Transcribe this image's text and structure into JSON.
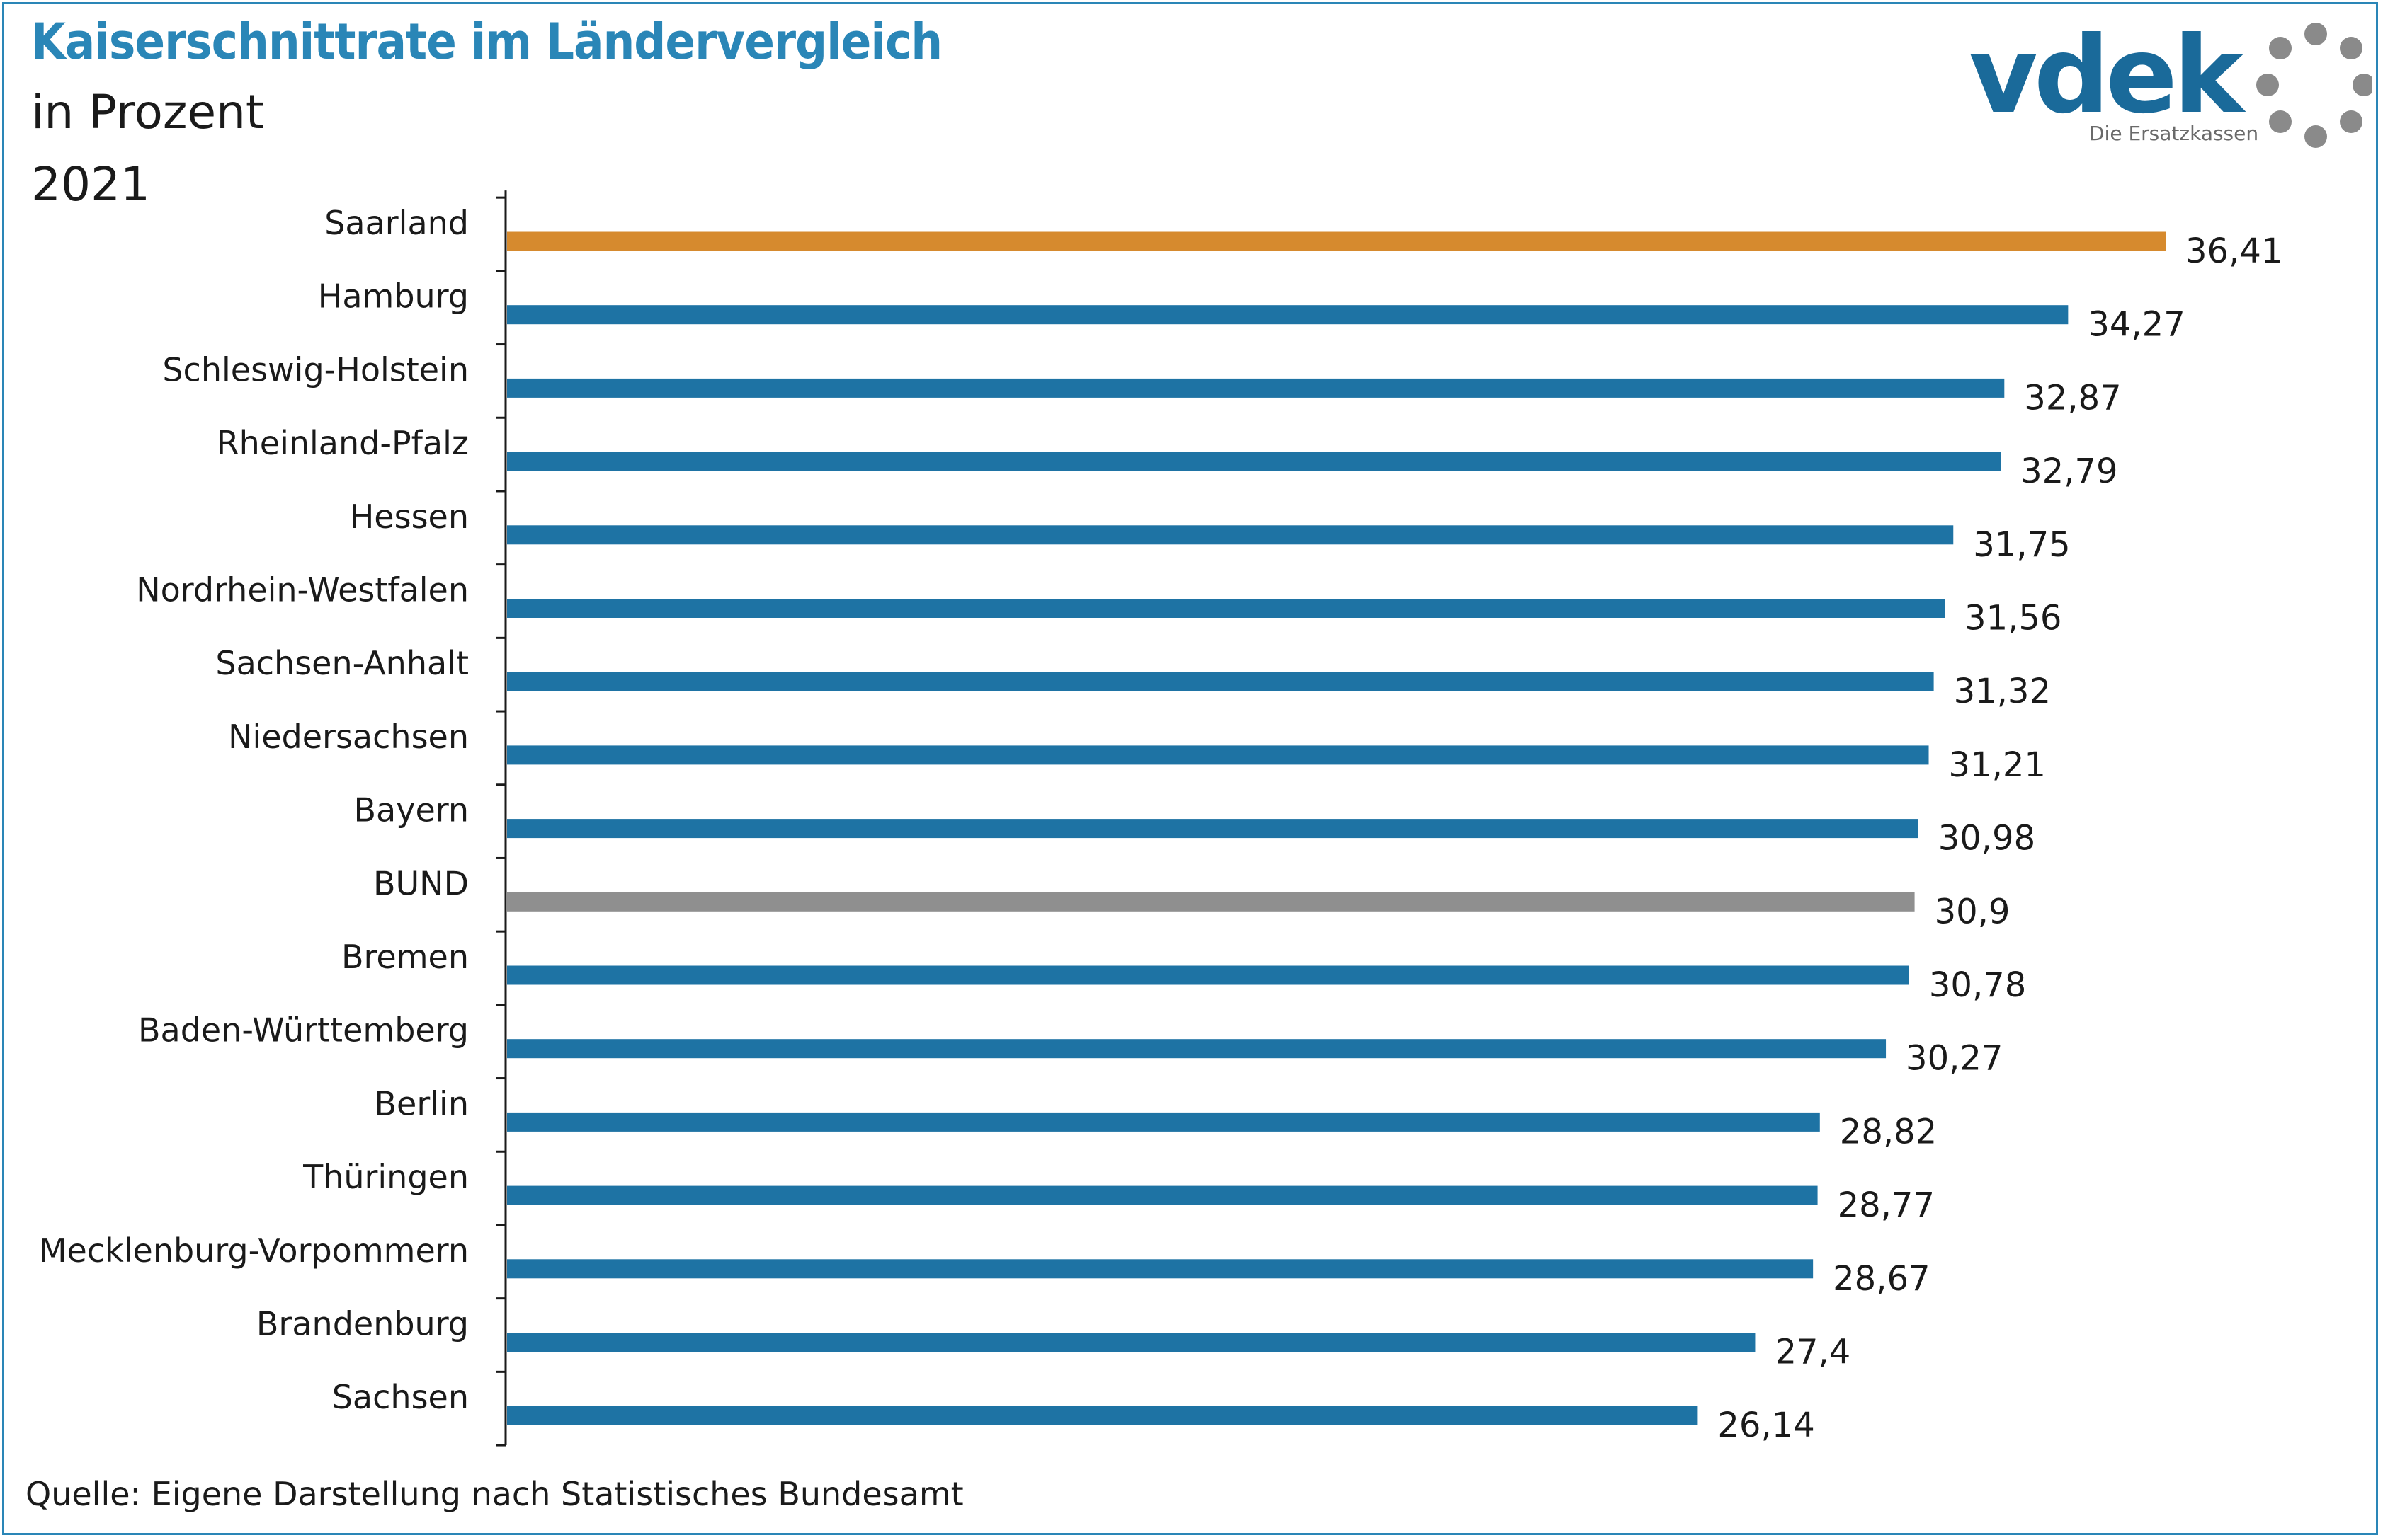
{
  "header": {
    "title": "Kaiserschnittrate im Ländervergleich",
    "subtitle": "in Prozent",
    "year": "2021"
  },
  "logo": {
    "wordmark": "vdek",
    "tagline": "Die Ersatzkassen",
    "icon": "ring-of-dots-icon"
  },
  "footer": {
    "source": "Quelle: Eigene Darstellung nach Statistisches Bundesamt"
  },
  "colors": {
    "title": "#2a86b7",
    "frame": "#2a86b7",
    "bar_default": "#1e73a4",
    "bar_highlight": "#d68a2e",
    "bar_average": "#8f8f8f",
    "logo_text": "#1a6a9a",
    "logo_dots": "#8a8a8a"
  },
  "chart_data": {
    "type": "bar",
    "orientation": "horizontal",
    "categories": [
      "Saarland",
      "Hamburg",
      "Schleswig-Holstein",
      "Rheinland-Pfalz",
      "Hessen",
      "Nordrhein-Westfalen",
      "Sachsen-Anhalt",
      "Niedersachsen",
      "Bayern",
      "BUND",
      "Bremen",
      "Baden-Württemberg",
      "Berlin",
      "Thüringen",
      "Mecklenburg-Vorpommern",
      "Brandenburg",
      "Sachsen"
    ],
    "values": [
      36.41,
      34.27,
      32.87,
      32.79,
      31.75,
      31.56,
      31.32,
      31.21,
      30.98,
      30.9,
      30.78,
      30.27,
      28.82,
      28.77,
      28.67,
      27.4,
      26.14
    ],
    "value_labels": [
      "36,41",
      "34,27",
      "32,87",
      "32,79",
      "31,75",
      "31,56",
      "31,32",
      "31,21",
      "30,98",
      "30,9",
      "30,78",
      "30,27",
      "28,82",
      "28,77",
      "28,67",
      "27,4",
      "26,14"
    ],
    "bar_colors": [
      "highlight",
      "default",
      "default",
      "default",
      "default",
      "default",
      "default",
      "default",
      "default",
      "average",
      "default",
      "default",
      "default",
      "default",
      "default",
      "default",
      "default"
    ],
    "xlim": [
      0,
      36.41
    ],
    "grid": false,
    "legend": "none"
  }
}
